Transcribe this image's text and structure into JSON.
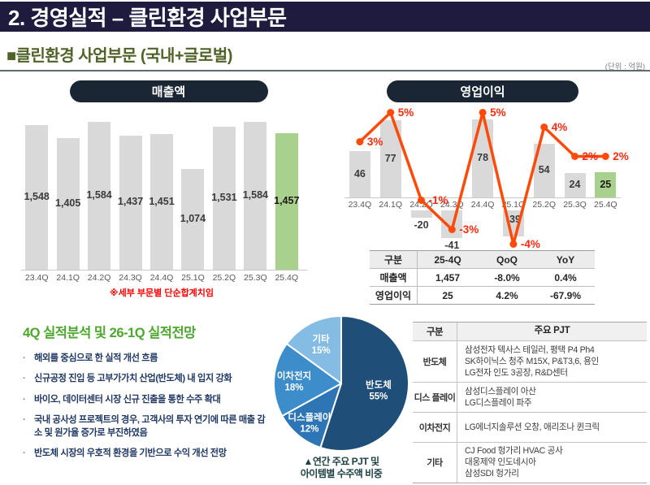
{
  "slide": {
    "title": "2. 경영실적 – 클린환경 사업부문",
    "section_title": "■클린환경 사업부문 (국내+글로벌)",
    "unit_label": "(단위 : 억원)"
  },
  "chart_data": [
    {
      "id": "revenue",
      "type": "bar",
      "title": "매출액",
      "categories": [
        "23.4Q",
        "24.1Q",
        "24.2Q",
        "24.3Q",
        "24.4Q",
        "25.1Q",
        "25.2Q",
        "25.3Q",
        "25.4Q"
      ],
      "values": [
        1548,
        1405,
        1584,
        1437,
        1451,
        1074,
        1531,
        1584,
        1457
      ],
      "value_labels": [
        "1,548",
        "1,405",
        "1,584",
        "1,437",
        "1,451",
        "1,074",
        "1,531",
        "1,584",
        "1,457"
      ],
      "highlight_index": 8,
      "bar_color": "#D9D9D9",
      "highlight_color": "#A9D18E",
      "note": "※세부 부문별 단순합계치임",
      "ylim": [
        0,
        1650
      ],
      "grid": false
    },
    {
      "id": "operating-profit",
      "type": "bar+line",
      "title": "영업이익",
      "categories": [
        "23.4Q",
        "24.1Q",
        "24.2Q",
        "24.3Q",
        "24.4Q",
        "25.1Q",
        "25.2Q",
        "25.3Q",
        "25.4Q"
      ],
      "series": [
        {
          "name": "영업이익",
          "type": "bar",
          "values": [
            46,
            77,
            -20,
            -41,
            78,
            -39,
            54,
            24,
            25
          ],
          "value_labels": [
            "46",
            "77",
            "-20",
            "-41",
            "78",
            "-39",
            "54",
            "24",
            "25"
          ],
          "label_positions": [
            "center",
            "center",
            "below",
            "below",
            "center",
            "center",
            "center",
            "center",
            "center"
          ]
        },
        {
          "name": "이익률",
          "type": "line",
          "values": [
            3,
            5,
            -1,
            -3,
            5,
            -4,
            4,
            2,
            2
          ],
          "value_labels": [
            "3%",
            "5%",
            "-1%",
            "-3%",
            "5%",
            "-4%",
            "4%",
            "2%",
            "2%"
          ]
        }
      ],
      "highlight_index": 8,
      "bar_color": "#D9D9D9",
      "highlight_color": "#A9D18E",
      "line_color": "#FF4A0A",
      "pct_label_color": "#FB2B10",
      "grid": false
    },
    {
      "id": "order-mix",
      "type": "pie",
      "slices": [
        {
          "label": "반도체",
          "pct": 55,
          "pct_label": "55%",
          "color": "#1F4E79"
        },
        {
          "label": "디스플레이",
          "pct": 12,
          "pct_label": "12%",
          "color": "#2E75B6"
        },
        {
          "label": "이차전지",
          "pct": 18,
          "pct_label": "18%",
          "color": "#3E8DCB"
        },
        {
          "label": "기타",
          "pct": 15,
          "pct_label": "15%",
          "color": "#85BCE4"
        }
      ],
      "start_angle_deg": 0,
      "clockwise": true,
      "caption_line1": "▲연간 주요 PJT 및",
      "caption_line2": "아이템별 수주액 비중"
    }
  ],
  "summary_table": {
    "headers": [
      "구분",
      "25-4Q",
      "QoQ",
      "YoY"
    ],
    "rows": [
      [
        "매출액",
        "1,457",
        "-8.0%",
        "0.4%"
      ],
      [
        "영업이익",
        "25",
        "4.2%",
        "-67.9%"
      ]
    ]
  },
  "analysis": {
    "heading": "4Q 실적분석 및 26-1Q 실적전망",
    "bullets": [
      "해외를 중심으로 한 실적 개선 흐름",
      "신규공정 진입 등 고부가가치 산업(반도체) 내 입지 강화",
      "바이오, 데이터센터 시장 신규 진출을 통한 수주 확대",
      "국내 공사성 프로젝트의 경우, 고객사의 투자 연기에 따른 매출 감소 및 원가율 증가로 부진하였음",
      "반도체 시장의 우호적 환경을 기반으로 수익 개선 전망"
    ]
  },
  "pjt_table": {
    "headers": [
      "구분",
      "주요 PJT"
    ],
    "rows": [
      {
        "category": "반도체",
        "lines": [
          "삼성전자 텍사스 테일러, 평택 P4 Ph4",
          "SK하이닉스 청주 M15X, P&T3,6, 용인",
          "LG전자 인도 3공장, R&D센터"
        ]
      },
      {
        "category": "디스 플레이",
        "lines": [
          "삼성디스플레이 아산",
          "LG디스플레이 파주"
        ]
      },
      {
        "category": "이차전지",
        "lines": [
          "LG에너지솔루션 오창, 애리조나 퀸크릭"
        ]
      },
      {
        "category": "기타",
        "lines": [
          "CJ Food 헝가리 HVAC 공사",
          "대웅제약 인도네시아",
          "삼성SDI 헝가리"
        ]
      }
    ]
  }
}
